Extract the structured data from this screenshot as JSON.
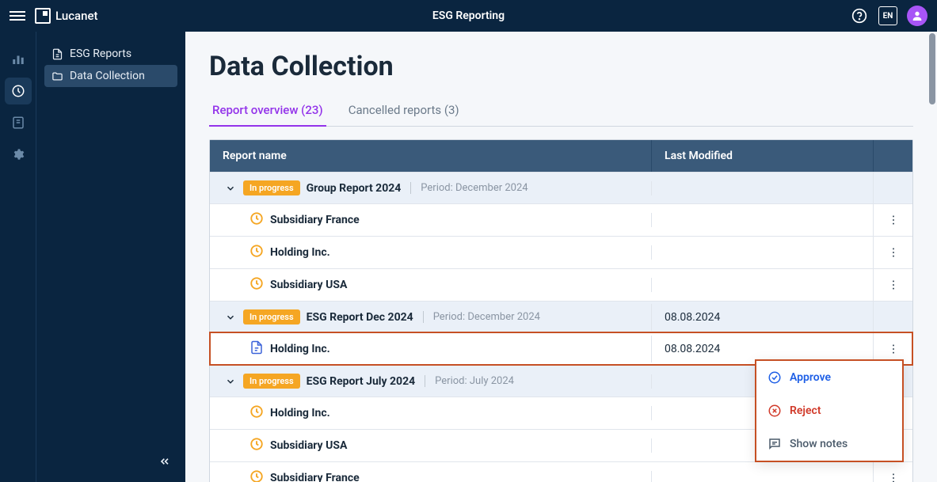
{
  "header": {
    "brand": "Lucanet",
    "title": "ESG Reporting",
    "lang": "EN"
  },
  "sidebar": {
    "items": [
      {
        "label": "ESG Reports"
      },
      {
        "label": "Data Collection"
      }
    ]
  },
  "page": {
    "title": "Data Collection"
  },
  "tabs": [
    {
      "label": "Report overview (23)",
      "active": true
    },
    {
      "label": "Cancelled reports (3)",
      "active": false
    }
  ],
  "table": {
    "headers": {
      "name": "Report name",
      "modified": "Last Modified"
    },
    "rows": [
      {
        "type": "group",
        "status": "In progress",
        "name": "Group Report 2024",
        "period": "Period: December 2024",
        "modified": ""
      },
      {
        "type": "sub",
        "icon": "clock",
        "name": "Subsidiary France",
        "modified": ""
      },
      {
        "type": "sub",
        "icon": "clock",
        "name": "Holding Inc.",
        "modified": ""
      },
      {
        "type": "sub",
        "icon": "clock",
        "name": "Subsidiary USA",
        "modified": ""
      },
      {
        "type": "group",
        "status": "In progress",
        "name": "ESG Report Dec 2024",
        "period": "Period: December 2024",
        "modified": "08.08.2024"
      },
      {
        "type": "sub",
        "icon": "doc",
        "name": "Holding Inc.",
        "modified": "08.08.2024",
        "highlight": true
      },
      {
        "type": "group",
        "status": "In progress",
        "name": "ESG Report July 2024",
        "period": "Period: July 2024",
        "modified": ""
      },
      {
        "type": "sub",
        "icon": "clock",
        "name": "Holding Inc.",
        "modified": ""
      },
      {
        "type": "sub",
        "icon": "clock",
        "name": "Subsidiary USA",
        "modified": ""
      },
      {
        "type": "sub",
        "icon": "clock",
        "name": "Subsidiary France",
        "modified": ""
      }
    ]
  },
  "menu": {
    "approve": "Approve",
    "reject": "Reject",
    "notes": "Show notes"
  }
}
